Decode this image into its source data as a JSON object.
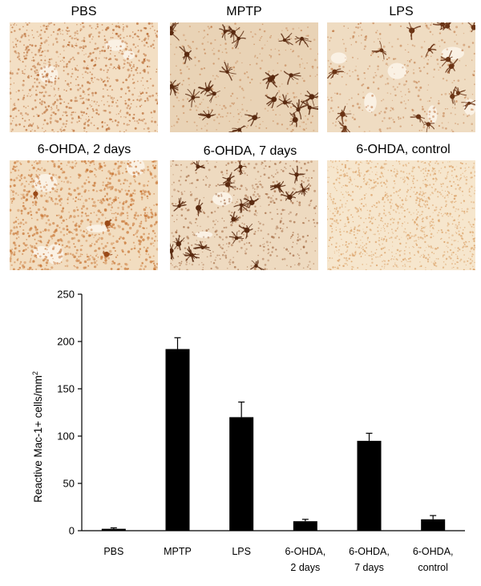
{
  "panels": [
    {
      "label": "PBS",
      "style": "diffuse"
    },
    {
      "label": "MPTP",
      "style": "reactive"
    },
    {
      "label": "LPS",
      "style": "reactive-light"
    },
    {
      "label": "6-OHDA, 2 days",
      "style": "diffuse-holes"
    },
    {
      "label": "6-OHDA, 7 days",
      "style": "reactive-medium"
    },
    {
      "label": "6-OHDA, control",
      "style": "fine"
    }
  ],
  "colors": {
    "bar": "#000000",
    "stain_dark": "#5a2a10",
    "stain_mid": "#b0581c",
    "stain_light": "#d89a5c",
    "background_tissue": "#f1dcc0"
  },
  "chart_data": {
    "type": "bar",
    "categories": [
      [
        "PBS"
      ],
      [
        "MPTP"
      ],
      [
        "LPS"
      ],
      [
        "6-OHDA,",
        "2 days"
      ],
      [
        "6-OHDA,",
        "7 days"
      ],
      [
        "6-OHDA,",
        "control"
      ]
    ],
    "values": [
      2,
      192,
      120,
      10,
      95,
      12
    ],
    "errors": [
      1,
      12,
      16,
      2,
      8,
      4
    ],
    "ylabel_main": "Reactive Mac-1+ cells/mm",
    "ylabel_sup": "2",
    "ylim": [
      0,
      250
    ],
    "yticks": [
      0,
      50,
      100,
      150,
      200,
      250
    ],
    "xlabel": "",
    "title": ""
  }
}
